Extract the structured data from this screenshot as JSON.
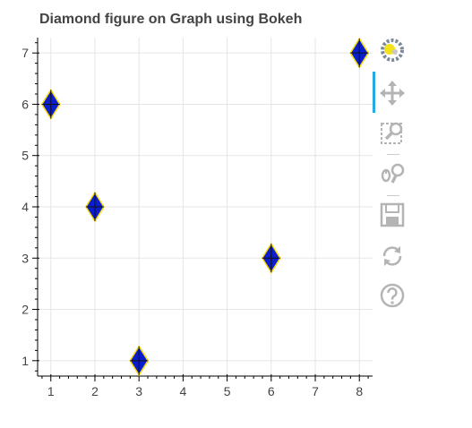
{
  "chart_data": {
    "type": "scatter",
    "title": "Diamond figure on Graph using Bokeh",
    "xlabel": "",
    "ylabel": "",
    "marker": "diamond_cross",
    "x": [
      1,
      2,
      3,
      6,
      8
    ],
    "y": [
      6,
      4,
      1,
      3,
      7
    ],
    "xlim": [
      0.7,
      8.3
    ],
    "ylim": [
      0.7,
      7.3
    ],
    "xticks": [
      "1",
      "2",
      "3",
      "4",
      "5",
      "6",
      "7",
      "8"
    ],
    "yticks": [
      "1",
      "2",
      "3",
      "4",
      "5",
      "6",
      "7"
    ],
    "grid": true,
    "colors": {
      "fill": "#0a1ecf",
      "line": "#f5d80a",
      "grid": "#e5e5e5",
      "axis": "#000000",
      "tick_label": "#444444"
    }
  },
  "toolbar": {
    "items": [
      {
        "name": "bokeh-logo-icon"
      },
      {
        "name": "pan-icon"
      },
      {
        "name": "box-zoom-icon"
      },
      {
        "name": "wheel-zoom-icon"
      },
      {
        "name": "save-icon"
      },
      {
        "name": "reset-icon"
      },
      {
        "name": "help-icon"
      }
    ]
  }
}
